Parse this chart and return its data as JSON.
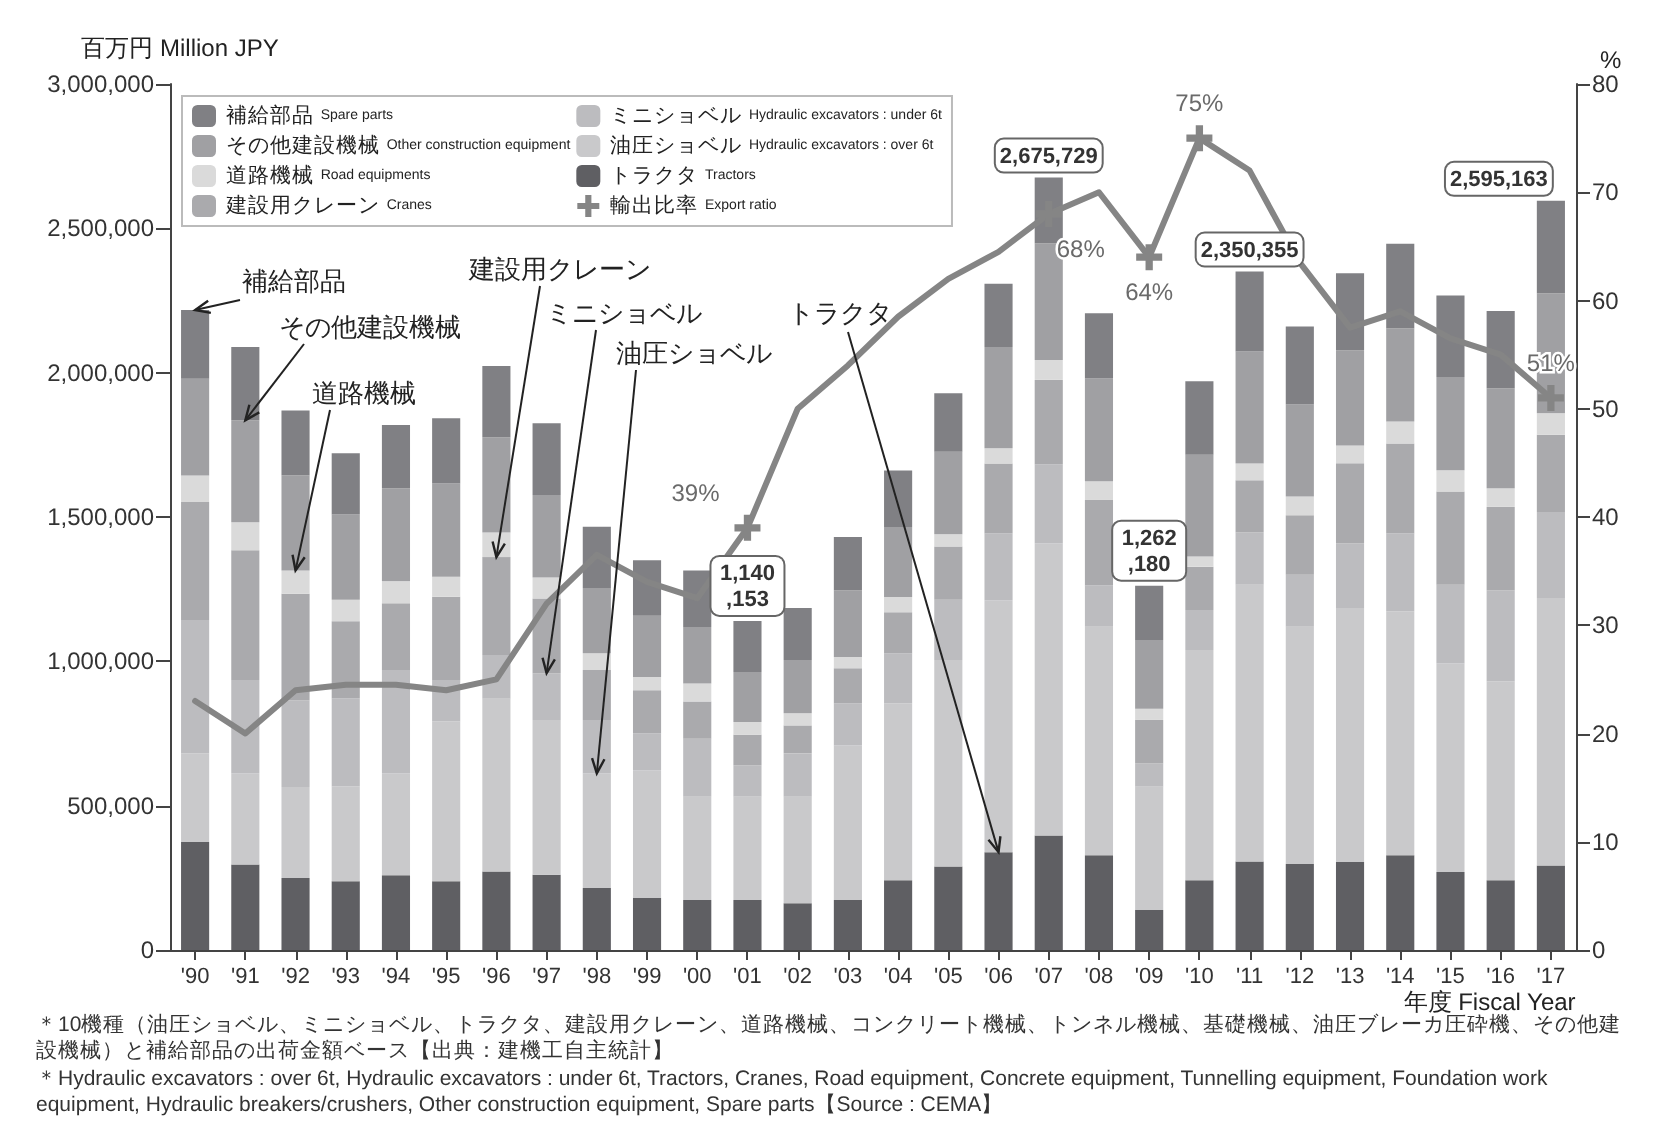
{
  "chart_data": {
    "type": "bar",
    "stacked": true,
    "ylabel": "百万円 Million JPY",
    "y2label": "%",
    "xlabel": "年度 Fiscal Year",
    "categories": [
      "'90",
      "'91",
      "'92",
      "'93",
      "'94",
      "'95",
      "'96",
      "'97",
      "'98",
      "'99",
      "'00",
      "'01",
      "'02",
      "'03",
      "'04",
      "'05",
      "'06",
      "'07",
      "'08",
      "'09",
      "'10",
      "'11",
      "'12",
      "'13",
      "'14",
      "'15",
      "'16",
      "'17"
    ],
    "series": [
      {
        "name": "トラクタ Tractors",
        "color": "#5f5f63",
        "values": [
          374000,
          296000,
          249000,
          238000,
          259000,
          238000,
          272000,
          261000,
          215000,
          180000,
          173000,
          173000,
          162000,
          173000,
          242000,
          289000,
          339000,
          397000,
          328000,
          139000,
          242000,
          307000,
          298000,
          305000,
          328000,
          270000,
          242000,
          293000
        ]
      },
      {
        "name": "油圧ショベル Hydraulic excavators : over 6t",
        "color": "#c9c9cb",
        "values": [
          307000,
          316000,
          316000,
          328000,
          353000,
          554000,
          598000,
          536000,
          397000,
          443000,
          358000,
          358000,
          369000,
          536000,
          612000,
          716000,
          873000,
          1012000,
          792000,
          427000,
          797000,
          958000,
          822000,
          880000,
          845000,
          723000,
          688000,
          926000
        ]
      },
      {
        "name": "ミニショベル Hydraulic excavators : under 6t",
        "color": "#bcbcbf",
        "values": [
          462000,
          323000,
          300000,
          305000,
          358000,
          143000,
          152000,
          162000,
          185000,
          127000,
          201000,
          109000,
          150000,
          145000,
          173000,
          208000,
          231000,
          273000,
          143000,
          81000,
          139000,
          182000,
          180000,
          224000,
          270000,
          272000,
          316000,
          298000
        ]
      },
      {
        "name": "建設用クレーン Cranes",
        "color": "#aaaaad",
        "values": [
          409000,
          450000,
          369000,
          268000,
          231000,
          289000,
          339000,
          259000,
          173000,
          150000,
          129000,
          106000,
          97000,
          122000,
          143000,
          185000,
          242000,
          293000,
          296000,
          150000,
          150000,
          180000,
          206000,
          277000,
          312000,
          323000,
          289000,
          268000
        ]
      },
      {
        "name": "道路機械 Road equipments",
        "color": "#dadada",
        "values": [
          92000,
          97000,
          81000,
          74000,
          76000,
          69000,
          85000,
          72000,
          58000,
          46000,
          62000,
          44000,
          42000,
          39000,
          53000,
          42000,
          53000,
          69000,
          65000,
          39000,
          35000,
          58000,
          65000,
          62000,
          76000,
          74000,
          65000,
          74000
        ]
      },
      {
        "name": "その他建設機械 Other construction equipment",
        "color": "#a0a0a3",
        "values": [
          335000,
          353000,
          330000,
          296000,
          323000,
          323000,
          330000,
          286000,
          226000,
          212000,
          196000,
          173000,
          185000,
          231000,
          242000,
          286000,
          351000,
          404000,
          356000,
          238000,
          353000,
          388000,
          319000,
          330000,
          323000,
          323000,
          346000,
          416000
        ]
      },
      {
        "name": "補給部品 Spare parts",
        "color": "#808084",
        "values": [
          238000,
          254000,
          224000,
          212000,
          219000,
          226000,
          247000,
          249000,
          212000,
          192000,
          196000,
          177153,
          180000,
          185000,
          196000,
          203000,
          219000,
          227729,
          226000,
          188180,
          254000,
          277355,
          270000,
          266000,
          293000,
          282000,
          268000,
          320163
        ]
      },
      {
        "name": "輸出比率 Export ratio",
        "type": "line",
        "axis": "y2",
        "color": "#858585",
        "values": [
          23,
          20,
          24,
          24.5,
          24.5,
          24,
          25,
          32,
          36.5,
          34,
          32.5,
          39,
          50,
          54,
          58.5,
          62,
          64.5,
          68,
          70,
          64,
          75,
          72,
          63.5,
          57.5,
          59,
          56.5,
          55,
          51
        ],
        "value_labels": [
          null,
          null,
          null,
          null,
          null,
          null,
          null,
          null,
          null,
          null,
          null,
          "39%",
          null,
          null,
          null,
          null,
          null,
          "68%",
          null,
          "64%",
          "75%",
          null,
          null,
          null,
          null,
          null,
          null,
          "51%"
        ]
      }
    ],
    "totals": [
      null,
      null,
      null,
      null,
      null,
      null,
      null,
      null,
      null,
      null,
      null,
      "1,140,153",
      null,
      null,
      null,
      null,
      null,
      "2,675,729",
      null,
      "1,262,180",
      null,
      "2,350,355",
      null,
      null,
      null,
      null,
      null,
      "2,595,163"
    ],
    "ylim": [
      0,
      3000000
    ],
    "yticks": [
      {
        "value": 0,
        "label": "0"
      },
      {
        "value": 500000,
        "label": "500,000"
      },
      {
        "value": 1000000,
        "label": "1,000,000"
      },
      {
        "value": 1500000,
        "label": "1,500,000"
      },
      {
        "value": 2000000,
        "label": "2,000,000"
      },
      {
        "value": 2500000,
        "label": "2,500,000"
      },
      {
        "value": 3000000,
        "label": "3,000,000"
      }
    ],
    "y2lim": [
      0,
      80
    ],
    "y2ticks": [
      0,
      10,
      20,
      30,
      40,
      50,
      60,
      70,
      80
    ],
    "grid": false,
    "legend": "top left",
    "annotations": [
      {
        "text": "補給部品",
        "x": "'90",
        "y": 2217000
      },
      {
        "text": "その他建設機械",
        "x": "'91",
        "y": 1835000
      },
      {
        "text": "道路機械",
        "x": "'92",
        "y": 1315000
      },
      {
        "text": "建設用クレーン",
        "x": "'96",
        "y": 1361000
      },
      {
        "text": "ミニショベル",
        "x": "'97",
        "y": 959000
      },
      {
        "text": "油圧ショベル",
        "x": "'98",
        "y": 612000
      },
      {
        "text": "トラクタ",
        "x": "'06",
        "y": 339000
      },
      "＊10機種（油圧ショベル、ミニショベル、トラクタ、建設用クレーン、道路機械、コンクリート機械、トンネル機械、基礎機械、油圧ブレーカ圧砕機、その他建設機械）と補給部品の出荷金額ベース【出典：建機工自主統計】",
      "＊Hydraulic excavators : over 6t, Hydraulic excavators : under 6t, Tractors, Cranes, Road equipment, Concrete equipment, Tunnelling equipment, Foundation work equipment, Hydraulic breakers/crushers, Other construction equipment, Spare parts【Source : CEMA】"
    ]
  }
}
